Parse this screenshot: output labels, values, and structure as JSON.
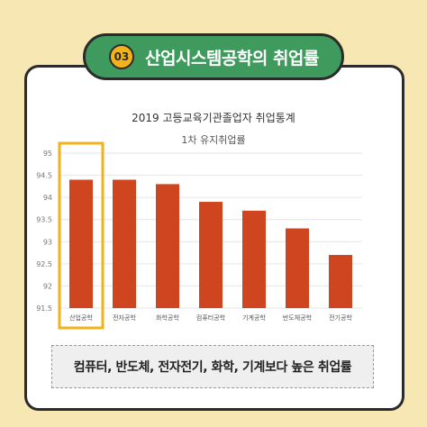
{
  "banner": {
    "number": "03",
    "title": "산업시스템공학의 취업률"
  },
  "caption": "컴퓨터, 반도체, 전자전기, 화학, 기계보다 높은 취업률",
  "colors": {
    "background": "#f7e7b2",
    "banner": "#3e9b5d",
    "badge": "#f3b21a",
    "bar": "#cf4520",
    "highlight": "#f3b21a"
  },
  "chart_data": {
    "type": "bar",
    "title": "2019 고등교육기관졸업자 취업통계",
    "subtitle": "1차 유지취업률",
    "categories": [
      "산업공학",
      "전자공학",
      "화학공학",
      "컴퓨터공학",
      "기계공학",
      "반도체공학",
      "전기공학"
    ],
    "values": [
      94.4,
      94.4,
      94.3,
      93.9,
      93.7,
      93.3,
      92.7
    ],
    "ylim": [
      91.5,
      95
    ],
    "yticks": [
      "91.5",
      "92",
      "92.5",
      "93",
      "93.5",
      "94",
      "94.5",
      "95"
    ],
    "highlighted_category": "산업공학",
    "grid": true,
    "legend": "none"
  }
}
